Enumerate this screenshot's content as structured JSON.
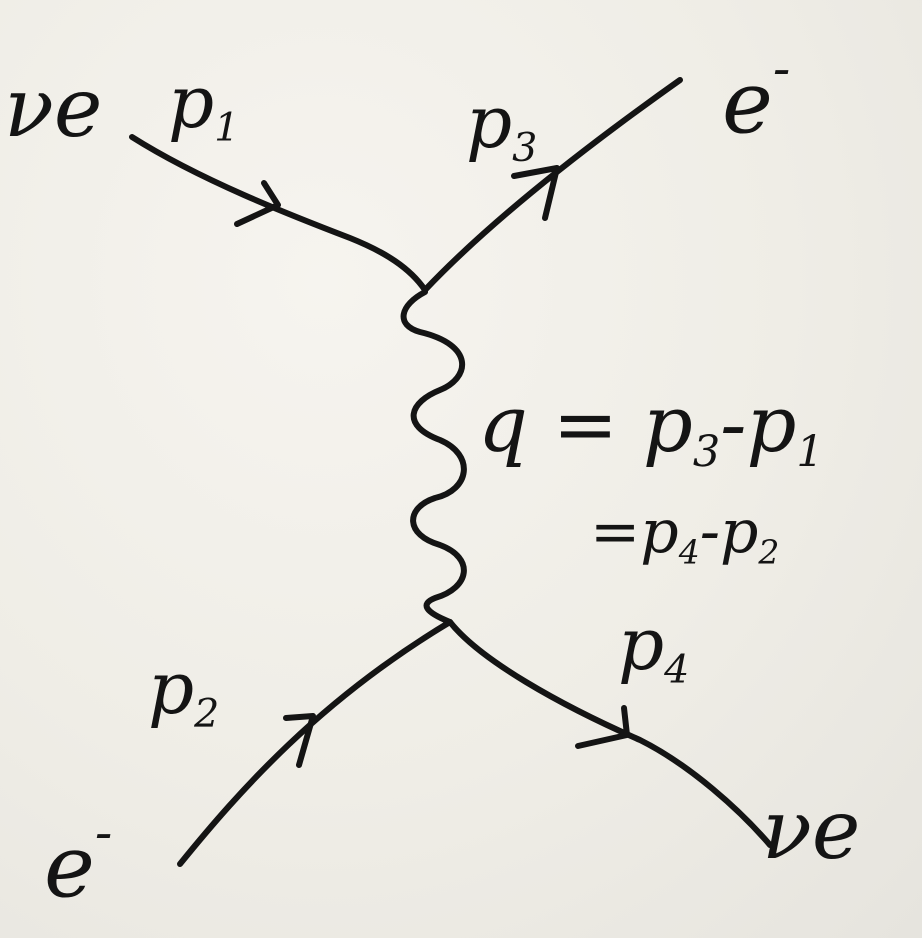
{
  "diagram": {
    "particles": {
      "nu_e_in": "νe",
      "e_out": "e",
      "e_in": "e",
      "nu_e_out": "νe",
      "charge": "-"
    },
    "momenta": {
      "p1": "p",
      "p1_sub": "1",
      "p2": "p",
      "p2_sub": "2",
      "p3": "p",
      "p3_sub": "3",
      "p4": "p",
      "p4_sub": "4"
    },
    "equation": {
      "line1_lhs": "q",
      "line1_eq": "=",
      "line1_a": "p",
      "line1_a_sub": "3",
      "line1_minus": "-",
      "line1_b": "p",
      "line1_b_sub": "1",
      "line2_eq": "=",
      "line2_a": "p",
      "line2_a_sub": "4",
      "line2_minus": "-",
      "line2_b": "p",
      "line2_b_sub": "2"
    }
  }
}
